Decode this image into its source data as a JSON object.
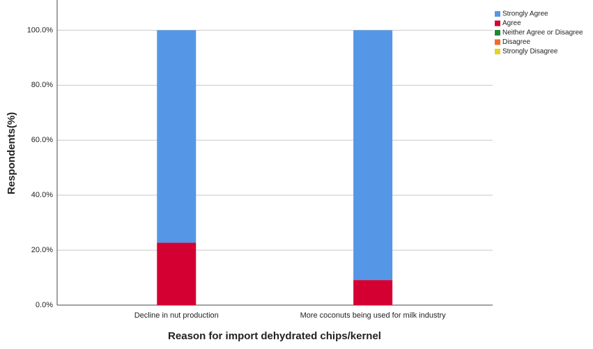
{
  "chart_data": {
    "type": "stacked_bar",
    "x_label": "Reason for import dehydrated chips/kernel",
    "y_label": "Respondents(%)",
    "categories": [
      "Decline in nut production",
      "More coconuts being used for milk industry"
    ],
    "series": [
      {
        "name": "Strongly Agree",
        "color": "#5596e6",
        "values": [
          77.3,
          90.9
        ]
      },
      {
        "name": "Agree",
        "color": "#d50032",
        "values": [
          22.7,
          9.1
        ]
      },
      {
        "name": "Neither Agree or Disagree",
        "color": "#1f8a2e",
        "values": [
          0,
          0
        ]
      },
      {
        "name": "Disagree",
        "color": "#ef6b2a",
        "values": [
          0,
          0
        ]
      },
      {
        "name": "Strongly Disagree",
        "color": "#e8d31e",
        "values": [
          0,
          0
        ]
      }
    ],
    "ylim": [
      0,
      111
    ],
    "yticks": [
      {
        "value": 0,
        "label": "0.0%"
      },
      {
        "value": 20,
        "label": "20.0%"
      },
      {
        "value": 40,
        "label": "40.0%"
      },
      {
        "value": 60,
        "label": "60.0%"
      },
      {
        "value": 80,
        "label": "80.0%"
      },
      {
        "value": 100,
        "label": "100.0%"
      }
    ],
    "grid": true,
    "legend": "top-right"
  }
}
